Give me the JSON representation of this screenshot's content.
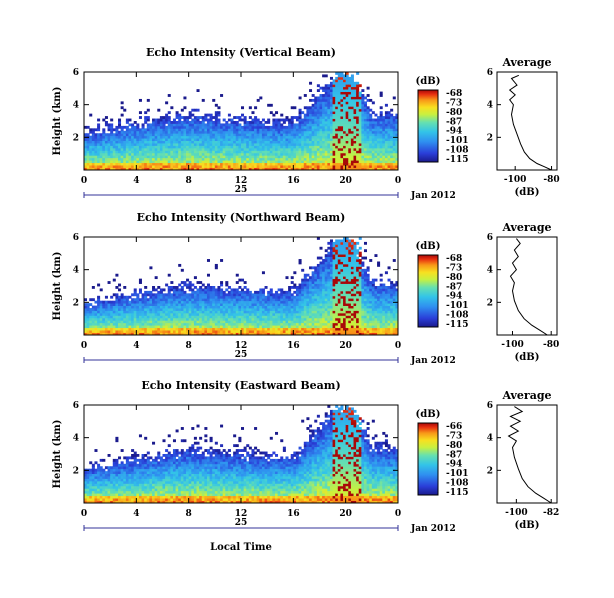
{
  "chart_data": [
    {
      "type": "heatmap",
      "title": "Echo Intensity (Vertical Beam)",
      "xlabel": "",
      "ylabel": "Height (km)",
      "x_ticks": [
        "0",
        "4",
        "8",
        "12",
        "16",
        "20",
        "0"
      ],
      "y_ticks": [
        "2",
        "4",
        "6"
      ],
      "xlim": [
        0,
        24
      ],
      "ylim": [
        0,
        6
      ],
      "date_axis": {
        "day_label": "25",
        "month_year": "Jan 2012"
      },
      "colorbar": {
        "unit": "(dB)",
        "ticks": [
          "-68",
          "-73",
          "-80",
          "-87",
          "-94",
          "-101",
          "-108",
          "-115"
        ],
        "range": [
          -115,
          -66
        ]
      },
      "sample_layers": [
        {
          "time": 0,
          "top_km": 2.3,
          "peak_db": -80
        },
        {
          "time": 4,
          "top_km": 2.9,
          "peak_db": -82
        },
        {
          "time": 8,
          "top_km": 3.4,
          "peak_db": -84
        },
        {
          "time": 12,
          "top_km": 3.1,
          "peak_db": -86
        },
        {
          "time": 16,
          "top_km": 2.9,
          "peak_db": -85
        },
        {
          "time": 19.5,
          "top_km": 6.0,
          "peak_db": -68
        },
        {
          "time": 20.5,
          "top_km": 6.0,
          "peak_db": -66
        },
        {
          "time": 22,
          "top_km": 3.5,
          "peak_db": -95
        }
      ],
      "profile": {
        "title": "Average",
        "xlabel": "(dB)",
        "x_ticks": [
          "-100",
          "-80"
        ],
        "xlim": [
          -110,
          -77
        ],
        "y_ticks": [
          "2",
          "4",
          "6"
        ],
        "ylim": [
          0,
          6
        ],
        "points": [
          [
            -80,
            0.0
          ],
          [
            -84,
            0.2
          ],
          [
            -88,
            0.4
          ],
          [
            -92,
            0.7
          ],
          [
            -95,
            1.1
          ],
          [
            -97,
            1.6
          ],
          [
            -99,
            2.2
          ],
          [
            -101,
            2.8
          ],
          [
            -102,
            3.4
          ],
          [
            -101,
            4.0
          ],
          [
            -103,
            4.3
          ],
          [
            -100,
            4.6
          ],
          [
            -103,
            4.9
          ],
          [
            -99,
            5.2
          ],
          [
            -102,
            5.6
          ],
          [
            -98,
            5.8
          ]
        ]
      }
    },
    {
      "type": "heatmap",
      "title": "Echo Intensity (Northward Beam)",
      "xlabel": "",
      "ylabel": "Height (km)",
      "x_ticks": [
        "0",
        "4",
        "8",
        "12",
        "16",
        "20",
        "0"
      ],
      "y_ticks": [
        "2",
        "4",
        "6"
      ],
      "xlim": [
        0,
        24
      ],
      "ylim": [
        0,
        6
      ],
      "date_axis": {
        "day_label": "25",
        "month_year": "Jan 2012"
      },
      "colorbar": {
        "unit": "(dB)",
        "ticks": [
          "-68",
          "-73",
          "-80",
          "-87",
          "-94",
          "-101",
          "-108",
          "-115"
        ],
        "range": [
          -115,
          -66
        ]
      },
      "sample_layers": [
        {
          "time": 0,
          "top_km": 2.0,
          "peak_db": -82
        },
        {
          "time": 4,
          "top_km": 2.6,
          "peak_db": -84
        },
        {
          "time": 8,
          "top_km": 3.0,
          "peak_db": -85
        },
        {
          "time": 12,
          "top_km": 2.8,
          "peak_db": -86
        },
        {
          "time": 16,
          "top_km": 2.7,
          "peak_db": -85
        },
        {
          "time": 19.5,
          "top_km": 6.0,
          "peak_db": -68
        },
        {
          "time": 20.5,
          "top_km": 6.0,
          "peak_db": -66
        },
        {
          "time": 22,
          "top_km": 3.2,
          "peak_db": -96
        }
      ],
      "profile": {
        "title": "Average",
        "xlabel": "(dB)",
        "x_ticks": [
          "-100",
          "-80"
        ],
        "xlim": [
          -108,
          -77
        ],
        "y_ticks": [
          "2",
          "4",
          "6"
        ],
        "ylim": [
          0,
          6
        ],
        "points": [
          [
            -82,
            0.0
          ],
          [
            -86,
            0.3
          ],
          [
            -90,
            0.6
          ],
          [
            -94,
            1.0
          ],
          [
            -97,
            1.5
          ],
          [
            -99,
            2.1
          ],
          [
            -100,
            2.7
          ],
          [
            -99,
            3.2
          ],
          [
            -101,
            3.6
          ],
          [
            -98,
            4.0
          ],
          [
            -100,
            4.4
          ],
          [
            -97,
            4.8
          ],
          [
            -99,
            5.2
          ],
          [
            -96,
            5.6
          ],
          [
            -98,
            5.9
          ]
        ]
      }
    },
    {
      "type": "heatmap",
      "title": "Echo Intensity (Eastward Beam)",
      "xlabel": "Local Time",
      "ylabel": "Height (km)",
      "x_ticks": [
        "0",
        "4",
        "8",
        "12",
        "16",
        "20",
        "0"
      ],
      "y_ticks": [
        "2",
        "4",
        "6"
      ],
      "xlim": [
        0,
        24
      ],
      "ylim": [
        0,
        6
      ],
      "date_axis": {
        "day_label": "25",
        "month_year": "Jan 2012"
      },
      "colorbar": {
        "unit": "(dB)",
        "ticks": [
          "-66",
          "-73",
          "-80",
          "-87",
          "-94",
          "-101",
          "-108",
          "-115"
        ],
        "range": [
          -115,
          -66
        ]
      },
      "sample_layers": [
        {
          "time": 0,
          "top_km": 2.1,
          "peak_db": -81
        },
        {
          "time": 4,
          "top_km": 2.7,
          "peak_db": -83
        },
        {
          "time": 8,
          "top_km": 3.3,
          "peak_db": -84
        },
        {
          "time": 12,
          "top_km": 3.0,
          "peak_db": -86
        },
        {
          "time": 16,
          "top_km": 2.8,
          "peak_db": -85
        },
        {
          "time": 19.5,
          "top_km": 6.0,
          "peak_db": -68
        },
        {
          "time": 20.5,
          "top_km": 6.0,
          "peak_db": -66
        },
        {
          "time": 22,
          "top_km": 3.4,
          "peak_db": -95
        }
      ],
      "profile": {
        "title": "Average",
        "xlabel": "(dB)",
        "x_ticks": [
          "-100",
          "-82"
        ],
        "xlim": [
          -110,
          -79
        ],
        "y_ticks": [
          "2",
          "4",
          "6"
        ],
        "ylim": [
          0,
          6
        ],
        "points": [
          [
            -82,
            0.0
          ],
          [
            -86,
            0.3
          ],
          [
            -90,
            0.6
          ],
          [
            -94,
            1.0
          ],
          [
            -97,
            1.5
          ],
          [
            -99,
            2.1
          ],
          [
            -101,
            2.8
          ],
          [
            -102,
            3.4
          ],
          [
            -100,
            3.8
          ],
          [
            -104,
            4.1
          ],
          [
            -99,
            4.4
          ],
          [
            -103,
            4.7
          ],
          [
            -98,
            5.0
          ],
          [
            -103,
            5.3
          ],
          [
            -97,
            5.6
          ],
          [
            -101,
            5.9
          ]
        ]
      }
    }
  ]
}
